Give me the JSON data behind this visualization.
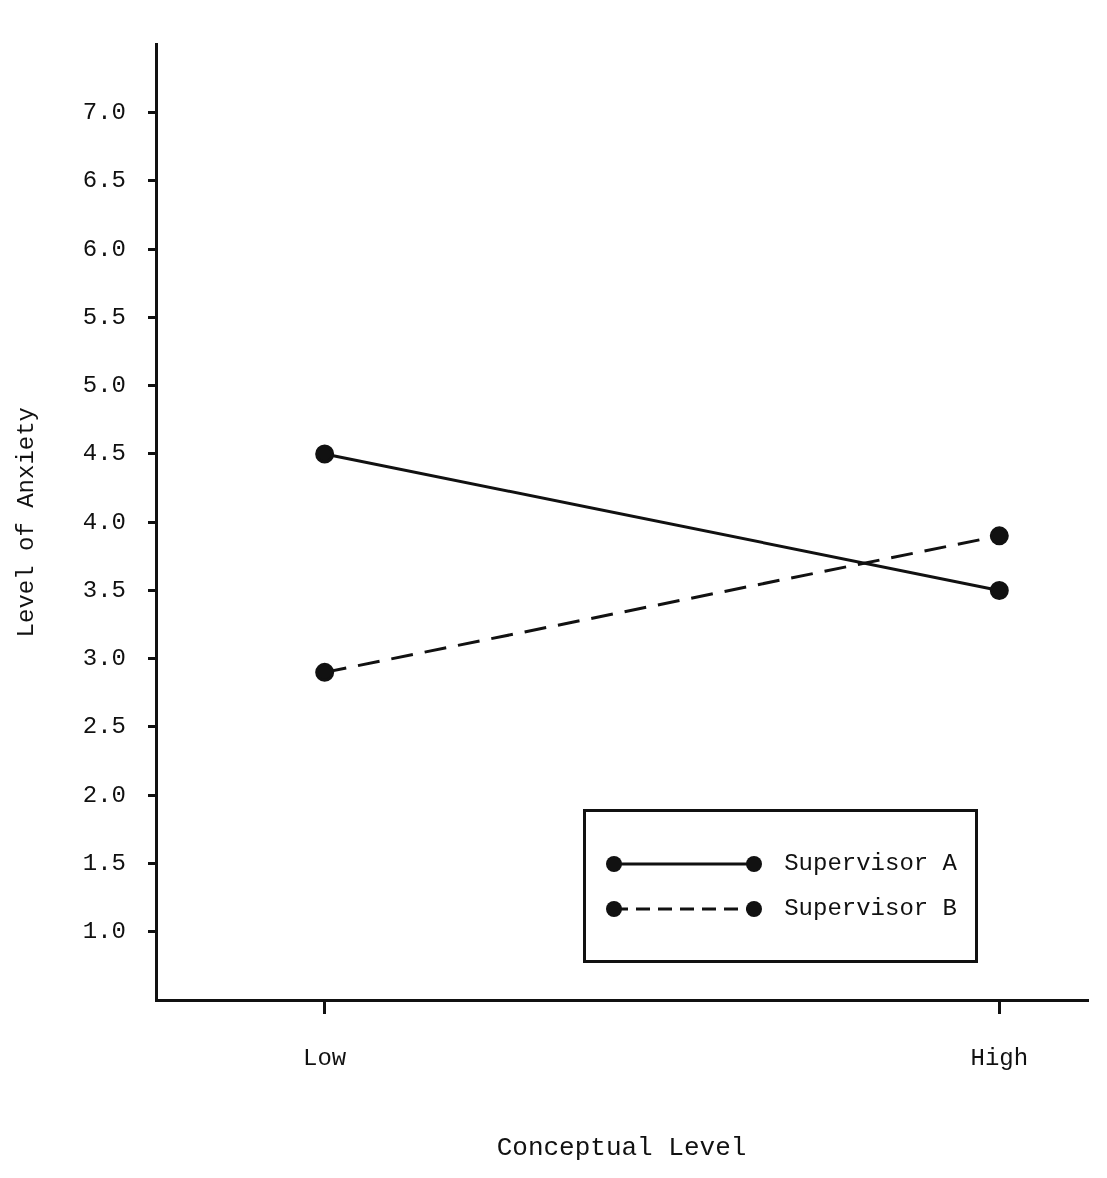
{
  "chart_data": {
    "type": "line",
    "xlabel": "Conceptual Level",
    "ylabel": "Level of Anxiety",
    "categories": [
      "Low",
      "High"
    ],
    "series": [
      {
        "name": "Supervisor A",
        "color": "#111111",
        "values": [
          4.5,
          3.5
        ],
        "line_style": "solid"
      },
      {
        "name": "Supervisor B",
        "color": "#111111",
        "values": [
          2.9,
          3.9
        ],
        "line_style": "dashed"
      }
    ],
    "ylim": [
      0.5,
      7.5
    ],
    "yticks": [
      {
        "value": 1,
        "label": "1.0"
      },
      {
        "value": 1.5,
        "label": "1.5"
      },
      {
        "value": 2,
        "label": "2.0"
      },
      {
        "value": 2.5,
        "label": "2.5"
      },
      {
        "value": 3,
        "label": "3.0"
      },
      {
        "value": 3.5,
        "label": "3.5"
      },
      {
        "value": 4,
        "label": "4.0"
      },
      {
        "value": 4.5,
        "label": "4.5"
      },
      {
        "value": 5,
        "label": "5.0"
      },
      {
        "value": 5.5,
        "label": "5.5"
      },
      {
        "value": 6,
        "label": "6.0"
      },
      {
        "value": 6.5,
        "label": "6.5"
      },
      {
        "value": 7,
        "label": "7.0"
      }
    ],
    "grid": false,
    "legend": "bottom right",
    "marker": "circle"
  }
}
